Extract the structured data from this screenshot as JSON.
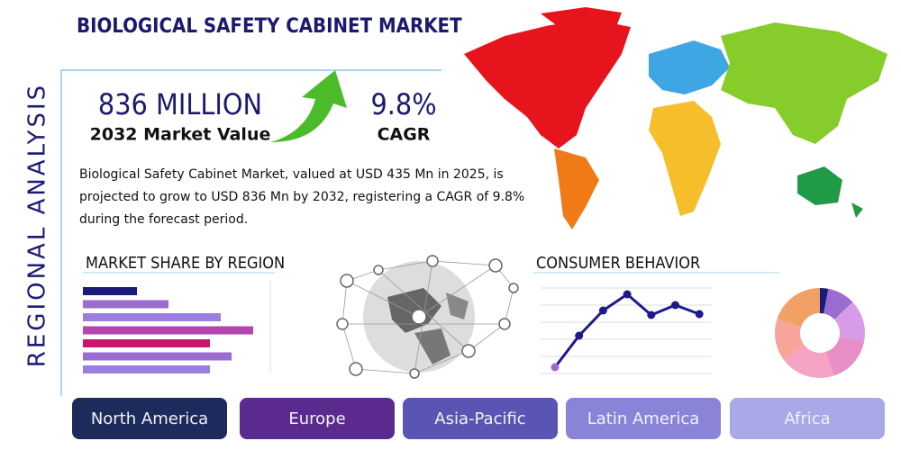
{
  "header": {
    "title": "BIOLOGICAL SAFETY CABINET MARKET",
    "side_title": "REGIONAL ANALYSIS"
  },
  "stats": [
    {
      "value": "836 MILLION",
      "label": "2032 Market Value"
    },
    {
      "value": "9.8%",
      "label": "CAGR"
    }
  ],
  "description": "Biological Safety Cabinet Market, valued at USD 435 Mn in 2025, is projected to grow to USD 836 Mn by 2032, registering a CAGR of 9.8% during the forecast period.",
  "share_chart": {
    "type": "bar",
    "title": "MARKET SHARE BY REGION",
    "values": [
      60,
      95,
      153,
      189,
      141,
      165,
      141
    ],
    "colors": [
      "#1c1a78",
      "#9a6ccf",
      "#9b7ee0",
      "#b446b0",
      "#c8166f",
      "#9a6ccf",
      "#9b7ee0"
    ]
  },
  "behavior_chart": {
    "type": "line",
    "title": "CONSUMER BEHAVIOR",
    "values": [
      1,
      4.5,
      7.3,
      9.1,
      6.8,
      7.9,
      6.9
    ],
    "color": "#1c1a8c"
  },
  "donut_chart": {
    "type": "pie",
    "values": [
      3,
      10,
      15,
      17,
      20,
      15,
      20
    ],
    "colors": [
      "#1c1a78",
      "#9a6ccf",
      "#d79be8",
      "#e78fc6",
      "#f5a3c2",
      "#f7a59a",
      "#f1a066"
    ]
  },
  "regions": [
    "North America",
    "Europe",
    "Asia-Pacific",
    "Latin America",
    "Africa"
  ]
}
